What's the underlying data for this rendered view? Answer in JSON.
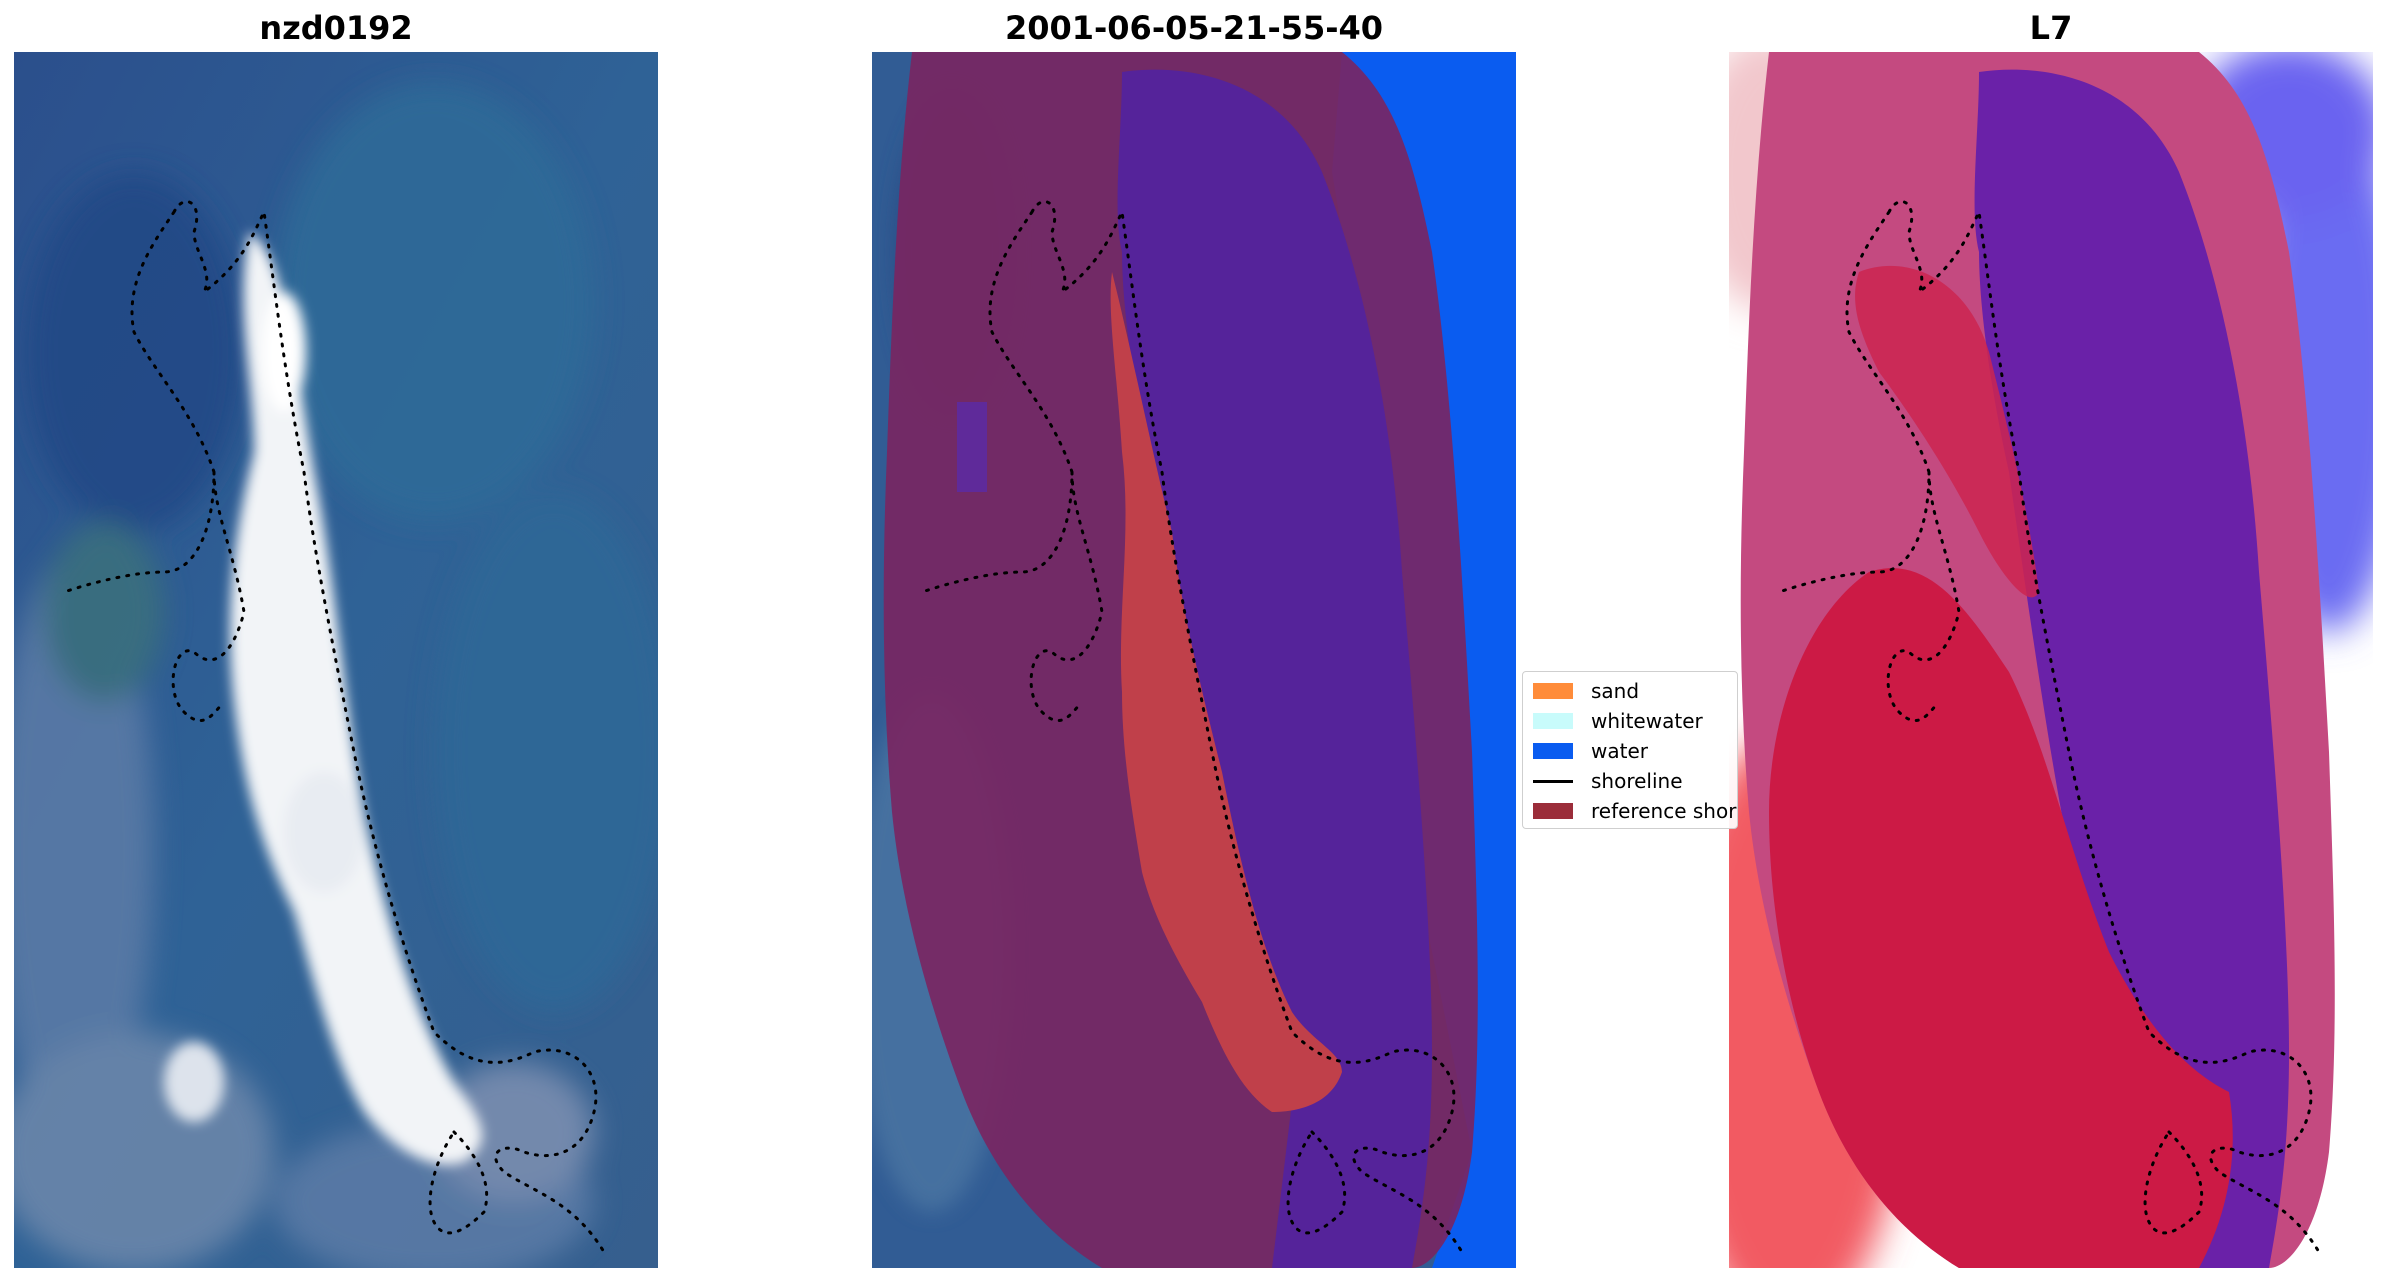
{
  "panels": [
    {
      "title": "nzd0192"
    },
    {
      "title": "2001-06-05-21-55-40"
    },
    {
      "title": "L7"
    }
  ],
  "legend": {
    "items": [
      {
        "label": "sand",
        "color": "#ff8c3a",
        "kind": "patch"
      },
      {
        "label": "whitewater",
        "color": "#c8fbfb",
        "kind": "patch"
      },
      {
        "label": "water",
        "color": "#0a5cf0",
        "kind": "patch"
      },
      {
        "label": "shoreline",
        "color": "#000000",
        "kind": "line"
      },
      {
        "label": "reference shoreline buffer",
        "color": "#9b2d3a",
        "kind": "patch"
      }
    ]
  },
  "colors": {
    "ocean": "#2f5c98",
    "classified_water": "#0a5cf0",
    "buffer_purple": "#55239a",
    "buffer_maroon": "#7a2560",
    "sand_class": "#c0404a",
    "mndwi_red": "#e8303a",
    "mndwi_purple": "#6a21a8"
  }
}
